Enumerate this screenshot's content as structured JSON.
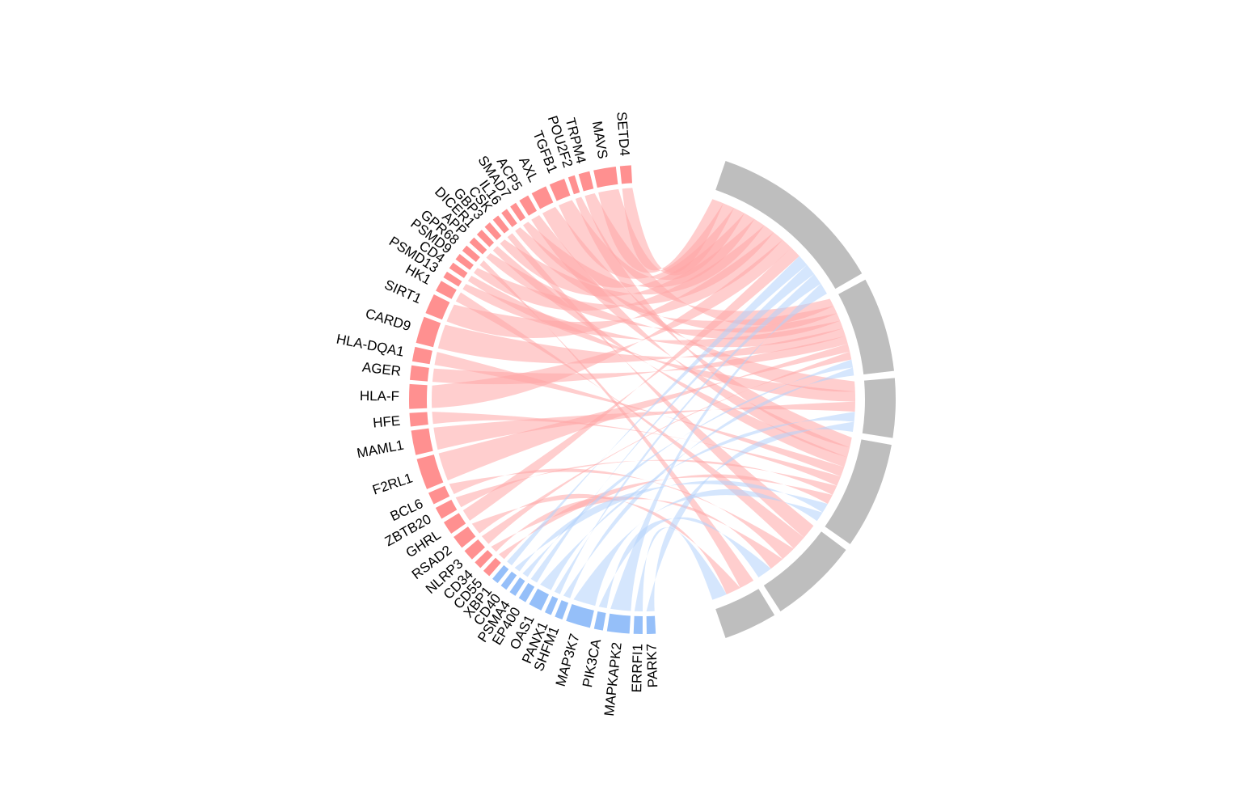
{
  "figure": {
    "type": "chord-diagram",
    "colors": {
      "up_sector": "#ff9090",
      "up_ribbon": "#ffa6a6",
      "down_sector": "#95bff9",
      "down_ribbon": "#b3d2fb",
      "target_sector": "#bebebe"
    }
  },
  "left_genes": [
    {
      "name": "SETD4",
      "group": "up",
      "weight": 1.0
    },
    {
      "name": "MAVS",
      "group": "up",
      "weight": 2.0
    },
    {
      "name": "TRPM4",
      "group": "up",
      "weight": 1.0
    },
    {
      "name": "POU2F2",
      "group": "up",
      "weight": 0.6
    },
    {
      "name": "TGFB1",
      "group": "up",
      "weight": 1.4
    },
    {
      "name": "AXL",
      "group": "up",
      "weight": 1.4
    },
    {
      "name": "ACP5",
      "group": "up",
      "weight": 0.9
    },
    {
      "name": "SMAD7",
      "group": "up",
      "weight": 0.6
    },
    {
      "name": "IL16",
      "group": "up",
      "weight": 0.6
    },
    {
      "name": "CSK",
      "group": "up",
      "weight": 0.6
    },
    {
      "name": "GBP3",
      "group": "up",
      "weight": 0.6
    },
    {
      "name": "DICER1",
      "group": "up",
      "weight": 0.6
    },
    {
      "name": "APP",
      "group": "up",
      "weight": 0.6
    },
    {
      "name": "GPR68",
      "group": "up",
      "weight": 0.6
    },
    {
      "name": "PSMD9",
      "group": "up",
      "weight": 0.6
    },
    {
      "name": "CD4",
      "group": "up",
      "weight": 0.6
    },
    {
      "name": "PSMD13",
      "group": "up",
      "weight": 0.6
    },
    {
      "name": "HK1",
      "group": "up",
      "weight": 1.0
    },
    {
      "name": "SIRT1",
      "group": "up",
      "weight": 1.8
    },
    {
      "name": "CARD9",
      "group": "up",
      "weight": 2.4
    },
    {
      "name": "HLA-DQA1",
      "group": "up",
      "weight": 1.3
    },
    {
      "name": "AGER",
      "group": "up",
      "weight": 1.3
    },
    {
      "name": "HLA-F",
      "group": "up",
      "weight": 2.2
    },
    {
      "name": "HFE",
      "group": "up",
      "weight": 1.2
    },
    {
      "name": "MAML1",
      "group": "up",
      "weight": 2.2
    },
    {
      "name": "F2RL1",
      "group": "up",
      "weight": 2.8
    },
    {
      "name": "BCL6",
      "group": "up",
      "weight": 1.1
    },
    {
      "name": "ZBTB20",
      "group": "up",
      "weight": 1.1
    },
    {
      "name": "GHRL",
      "group": "up",
      "weight": 1.2
    },
    {
      "name": "RSAD2",
      "group": "up",
      "weight": 1.2
    },
    {
      "name": "NLRP3",
      "group": "up",
      "weight": 1.0
    },
    {
      "name": "CD34",
      "group": "up",
      "weight": 0.7
    },
    {
      "name": "CD55",
      "group": "up",
      "weight": 0.7
    },
    {
      "name": "XBP1",
      "group": "down",
      "weight": 0.6
    },
    {
      "name": "CD40",
      "group": "down",
      "weight": 0.6
    },
    {
      "name": "PSMA4",
      "group": "down",
      "weight": 0.6
    },
    {
      "name": "EP400",
      "group": "down",
      "weight": 0.7
    },
    {
      "name": "OAS1",
      "group": "down",
      "weight": 1.2
    },
    {
      "name": "PANX1",
      "group": "down",
      "weight": 0.6
    },
    {
      "name": "SHFM1",
      "group": "down",
      "weight": 0.7
    },
    {
      "name": "MAP3K7",
      "group": "down",
      "weight": 2.2
    },
    {
      "name": "PIK3CA",
      "group": "down",
      "weight": 0.8
    },
    {
      "name": "MAPKAPK2",
      "group": "down",
      "weight": 2.0
    },
    {
      "name": "ERRFI1",
      "group": "down",
      "weight": 0.8
    },
    {
      "name": "PARK7",
      "group": "down",
      "weight": 0.8
    }
  ],
  "right_sectors": [
    {
      "weight": 6.0
    },
    {
      "weight": 3.2
    },
    {
      "weight": 2.0
    },
    {
      "weight": 3.6
    },
    {
      "weight": 3.0
    },
    {
      "weight": 1.8
    }
  ],
  "links": [
    [
      0,
      0
    ],
    [
      1,
      0
    ],
    [
      2,
      1
    ],
    [
      3,
      3
    ],
    [
      4,
      0
    ],
    [
      5,
      2
    ],
    [
      6,
      3
    ],
    [
      7,
      0
    ],
    [
      8,
      1
    ],
    [
      9,
      4
    ],
    [
      10,
      0
    ],
    [
      11,
      3
    ],
    [
      12,
      1
    ],
    [
      13,
      5
    ],
    [
      14,
      0
    ],
    [
      15,
      2
    ],
    [
      16,
      1
    ],
    [
      17,
      4
    ],
    [
      18,
      0
    ],
    [
      19,
      1
    ],
    [
      20,
      3
    ],
    [
      21,
      1
    ],
    [
      22,
      0
    ],
    [
      23,
      3
    ],
    [
      24,
      2
    ],
    [
      25,
      1
    ],
    [
      26,
      4
    ],
    [
      27,
      3
    ],
    [
      28,
      0
    ],
    [
      29,
      5
    ],
    [
      30,
      1
    ],
    [
      31,
      4
    ],
    [
      32,
      3
    ],
    [
      33,
      0
    ],
    [
      34,
      3
    ],
    [
      35,
      1
    ],
    [
      36,
      0
    ],
    [
      37,
      2
    ],
    [
      38,
      0
    ],
    [
      39,
      1
    ],
    [
      40,
      3
    ],
    [
      41,
      4
    ],
    [
      42,
      0
    ],
    [
      43,
      5
    ],
    [
      44,
      2
    ]
  ]
}
